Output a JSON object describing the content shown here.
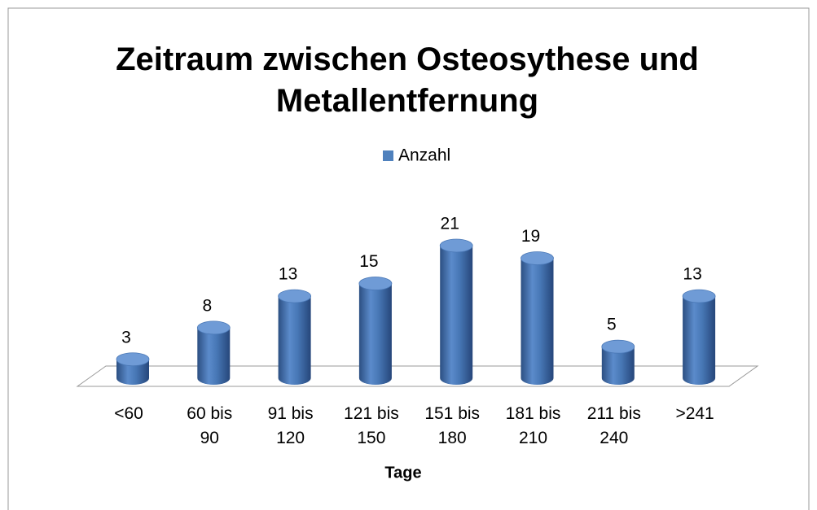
{
  "chart_data": {
    "type": "bar",
    "title": "Zeitraum zwischen Osteosythese und Metallentfernung",
    "categories": [
      "<60",
      "60 bis 90",
      "91 bis 120",
      "121 bis 150",
      "151 bis 180",
      "181 bis 210",
      "211 bis 240",
      ">241"
    ],
    "series": [
      {
        "name": "Anzahl",
        "color": "#4f81bd",
        "values": [
          3,
          8,
          13,
          15,
          21,
          19,
          5,
          13
        ]
      }
    ],
    "x_label": "Tage",
    "legend": "top"
  }
}
